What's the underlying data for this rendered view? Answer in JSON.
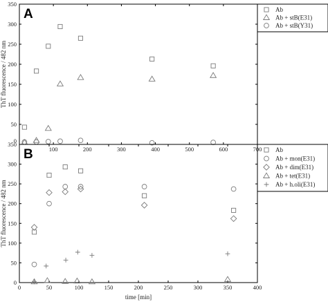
{
  "chart_data": [
    {
      "type": "scatter",
      "panel_label": "A",
      "ylabel": "ThT fluorescence / 482 nm",
      "xlim": [
        0,
        700
      ],
      "ylim": [
        0,
        350
      ],
      "xticks": [
        0,
        100,
        200,
        300,
        400,
        500,
        600,
        700
      ],
      "yticks": [
        0,
        50,
        100,
        150,
        200,
        250,
        300,
        350
      ],
      "legend_position": "top-right",
      "series": [
        {
          "name": "Ab",
          "marker": "square",
          "points": [
            [
              15,
              43
            ],
            [
              50,
              183
            ],
            [
              85,
              245
            ],
            [
              120,
              294
            ],
            [
              180,
              265
            ],
            [
              390,
              213
            ],
            [
              570,
              196
            ]
          ]
        },
        {
          "name": "Ab + stB(E31)",
          "marker": "triangle",
          "points": [
            [
              15,
              5
            ],
            [
              50,
              10
            ],
            [
              85,
              40
            ],
            [
              120,
              151
            ],
            [
              180,
              167
            ],
            [
              390,
              163
            ],
            [
              570,
              172
            ]
          ]
        },
        {
          "name": "Ab + stB(Y31)",
          "marker": "circle",
          "points": [
            [
              15,
              6
            ],
            [
              50,
              6
            ],
            [
              85,
              7
            ],
            [
              120,
              8
            ],
            [
              180,
              10
            ],
            [
              390,
              4
            ],
            [
              570,
              5
            ]
          ]
        }
      ]
    },
    {
      "type": "scatter",
      "panel_label": "B",
      "ylabel": "ThT fluorescence / 482 nm",
      "xlabel": "time [min]",
      "xlim": [
        0,
        400
      ],
      "ylim": [
        0,
        350
      ],
      "xticks": [
        0,
        50,
        100,
        150,
        200,
        250,
        300,
        350,
        400
      ],
      "yticks": [
        0,
        50,
        100,
        150,
        200,
        250,
        300,
        350
      ],
      "legend_position": "top-right",
      "series": [
        {
          "name": "Ab",
          "marker": "square",
          "points": [
            [
              25,
              128
            ],
            [
              50,
              272
            ],
            [
              77,
              293
            ],
            [
              103,
              283
            ],
            [
              210,
              220
            ],
            [
              360,
              183
            ]
          ]
        },
        {
          "name": "Ab + mon(E31)",
          "marker": "circle",
          "points": [
            [
              25,
              46
            ],
            [
              50,
              200
            ],
            [
              77,
              243
            ],
            [
              103,
              243
            ],
            [
              210,
              243
            ],
            [
              360,
              237
            ]
          ]
        },
        {
          "name": "Ab + dim(E31)",
          "marker": "diamond",
          "points": [
            [
              25,
              140
            ],
            [
              50,
              228
            ],
            [
              77,
              230
            ],
            [
              103,
              237
            ],
            [
              210,
              196
            ],
            [
              360,
              162
            ]
          ]
        },
        {
          "name": "Ab + tet(E31)",
          "marker": "triangle",
          "points": [
            [
              25,
              2
            ],
            [
              47,
              5
            ],
            [
              77,
              3
            ],
            [
              97,
              4
            ],
            [
              122,
              2
            ],
            [
              350,
              8
            ]
          ]
        },
        {
          "name": "Ab + h.oli(E31)",
          "marker": "plus",
          "points": [
            [
              25,
              2
            ],
            [
              45,
              42
            ],
            [
              78,
              57
            ],
            [
              98,
              77
            ],
            [
              122,
              69
            ],
            [
              350,
              73
            ]
          ]
        }
      ]
    }
  ]
}
